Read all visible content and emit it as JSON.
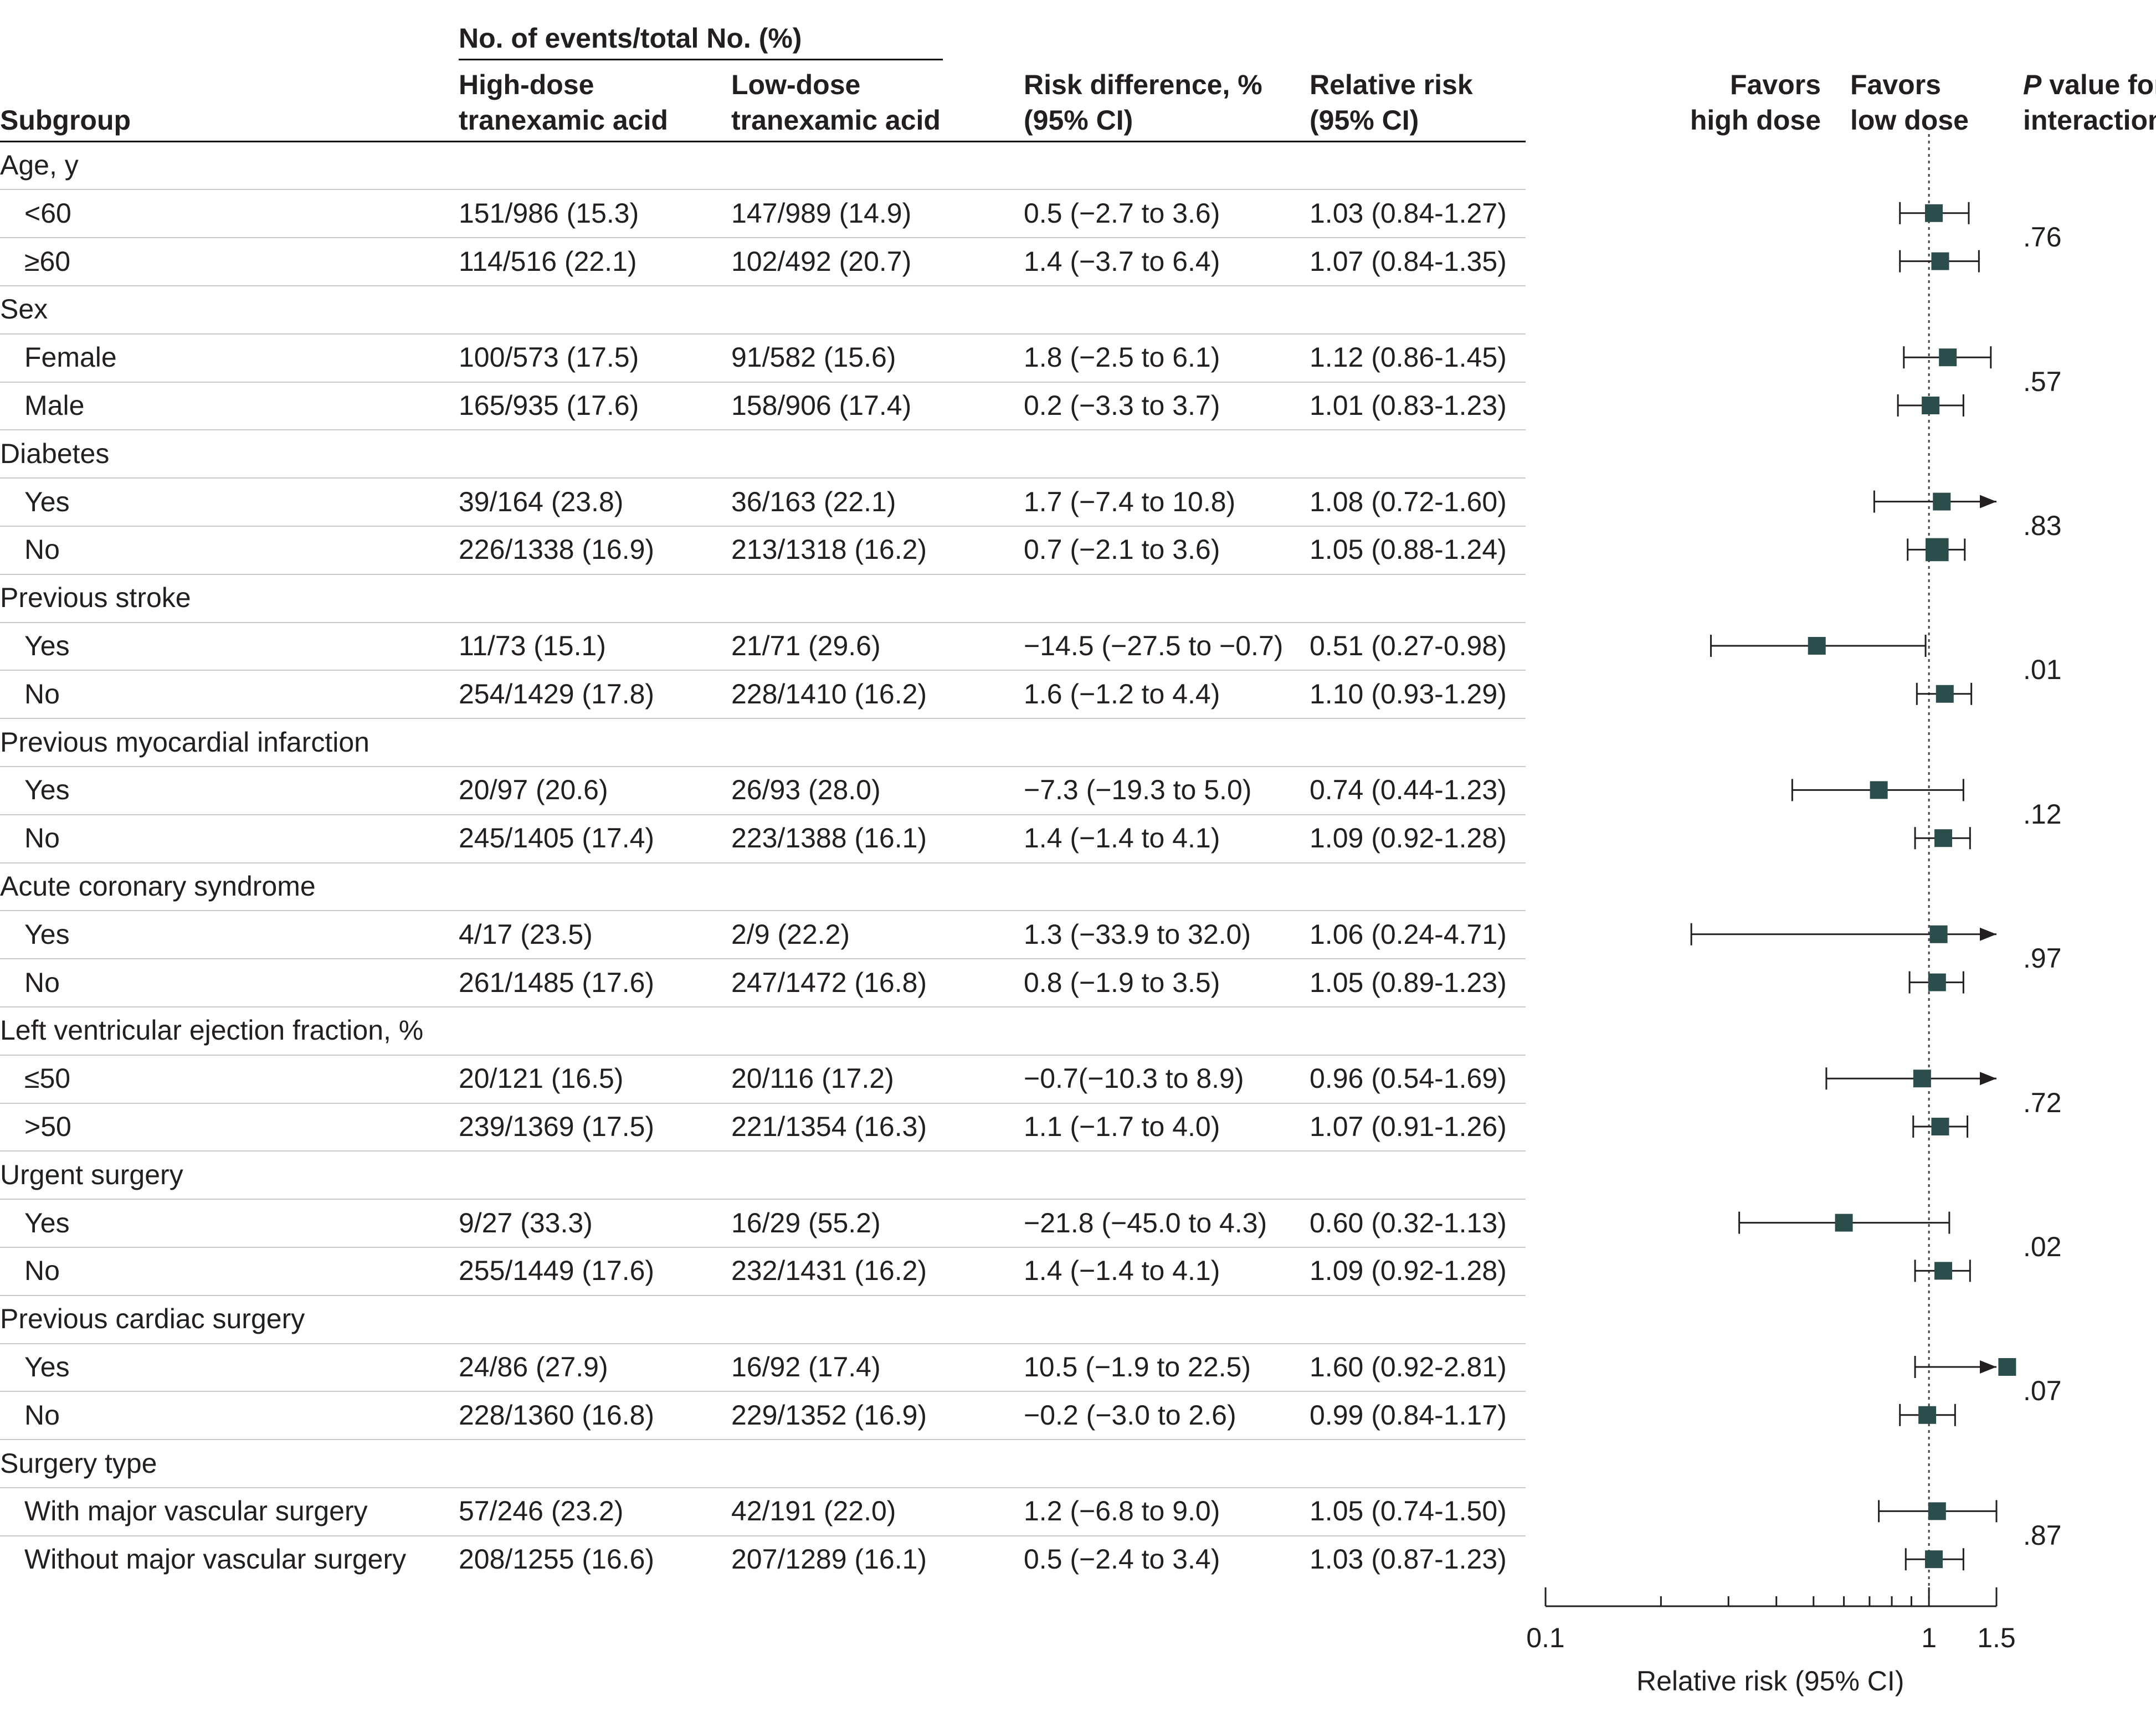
{
  "headers": {
    "events_group": "No. of events/total No. (%)",
    "subgroup": "Subgroup",
    "high_dose_1": "High-dose",
    "high_dose_2": "tranexamic acid",
    "low_dose_1": "Low-dose",
    "low_dose_2": "tranexamic acid",
    "risk_diff_1": "Risk difference, %",
    "risk_diff_2": "(95% CI)",
    "rel_risk_1": "Relative risk",
    "rel_risk_2": "(95% CI)",
    "favors_high_1": "Favors",
    "favors_high_2": "high dose",
    "favors_low_1": "Favors",
    "favors_low_2": "low dose",
    "pval_1": "value for",
    "pval_p": "P",
    "pval_2": "interaction"
  },
  "groups": [
    {
      "label": "Age, y",
      "p_value": ".76",
      "rows": [
        {
          "label": "<60",
          "high": "151/986 (15.3)",
          "low": "147/989 (14.9)",
          "rd": "0.5 (−2.7 to 3.6)",
          "rr": "1.03 (0.84-1.27)"
        },
        {
          "label": "≥60",
          "high": "114/516 (22.1)",
          "low": "102/492 (20.7)",
          "rd": "1.4 (−3.7 to 6.4)",
          "rr": "1.07 (0.84-1.35)"
        }
      ]
    },
    {
      "label": "Sex",
      "p_value": ".57",
      "rows": [
        {
          "label": "Female",
          "high": "100/573 (17.5)",
          "low": "91/582 (15.6)",
          "rd": "1.8 (−2.5 to 6.1)",
          "rr": "1.12 (0.86-1.45)"
        },
        {
          "label": "Male",
          "high": "165/935 (17.6)",
          "low": "158/906 (17.4)",
          "rd": "0.2 (−3.3 to 3.7)",
          "rr": "1.01 (0.83-1.23)"
        }
      ]
    },
    {
      "label": "Diabetes",
      "p_value": ".83",
      "rows": [
        {
          "label": "Yes",
          "high": "39/164 (23.8)",
          "low": "36/163 (22.1)",
          "rd": "1.7 (−7.4 to 10.8)",
          "rr": "1.08 (0.72-1.60)"
        },
        {
          "label": "No",
          "high": "226/1338 (16.9)",
          "low": "213/1318 (16.2)",
          "rd": "0.7 (−2.1 to 3.6)",
          "rr": "1.05 (0.88-1.24)"
        }
      ]
    },
    {
      "label": "Previous stroke",
      "p_value": ".01",
      "rows": [
        {
          "label": "Yes",
          "high": "11/73 (15.1)",
          "low": "21/71 (29.6)",
          "rd": "−14.5 (−27.5 to −0.7)",
          "rr": "0.51 (0.27-0.98)"
        },
        {
          "label": "No",
          "high": "254/1429 (17.8)",
          "low": "228/1410 (16.2)",
          "rd": "1.6 (−1.2 to 4.4)",
          "rr": "1.10 (0.93-1.29)"
        }
      ]
    },
    {
      "label": "Previous myocardial infarction",
      "p_value": ".12",
      "rows": [
        {
          "label": "Yes",
          "high": "20/97 (20.6)",
          "low": "26/93 (28.0)",
          "rd": "−7.3 (−19.3 to 5.0)",
          "rr": "0.74 (0.44-1.23)"
        },
        {
          "label": "No",
          "high": "245/1405 (17.4)",
          "low": "223/1388 (16.1)",
          "rd": "1.4 (−1.4 to 4.1)",
          "rr": "1.09 (0.92-1.28)"
        }
      ]
    },
    {
      "label": "Acute coronary syndrome",
      "p_value": ".97",
      "rows": [
        {
          "label": "Yes",
          "high": "4/17 (23.5)",
          "low": "2/9 (22.2)",
          "rd": "1.3 (−33.9 to 32.0)",
          "rr": "1.06 (0.24-4.71)"
        },
        {
          "label": "No",
          "high": "261/1485 (17.6)",
          "low": "247/1472 (16.8)",
          "rd": "0.8 (−1.9 to 3.5)",
          "rr": "1.05 (0.89-1.23)"
        }
      ]
    },
    {
      "label": "Left ventricular ejection fraction, %",
      "p_value": ".72",
      "rows": [
        {
          "label": "≤50",
          "high": "20/121 (16.5)",
          "low": "20/116 (17.2)",
          "rd": "−0.7(−10.3 to 8.9)",
          "rr": "0.96 (0.54-1.69)"
        },
        {
          "label": ">50",
          "high": "239/1369 (17.5)",
          "low": "221/1354 (16.3)",
          "rd": "1.1 (−1.7 to 4.0)",
          "rr": "1.07 (0.91-1.26)"
        }
      ]
    },
    {
      "label": "Urgent surgery",
      "p_value": ".02",
      "rows": [
        {
          "label": "Yes",
          "high": "9/27 (33.3)",
          "low": "16/29 (55.2)",
          "rd": "−21.8 (−45.0 to 4.3)",
          "rr": "0.60 (0.32-1.13)"
        },
        {
          "label": "No",
          "high": "255/1449 (17.6)",
          "low": "232/1431 (16.2)",
          "rd": "1.4 (−1.4 to 4.1)",
          "rr": "1.09 (0.92-1.28)"
        }
      ]
    },
    {
      "label": "Previous cardiac surgery",
      "p_value": ".07",
      "rows": [
        {
          "label": "Yes",
          "high": "24/86 (27.9)",
          "low": "16/92 (17.4)",
          "rd": "10.5 (−1.9 to 22.5)",
          "rr": "1.60 (0.92-2.81)"
        },
        {
          "label": "No",
          "high": "228/1360 (16.8)",
          "low": "229/1352 (16.9)",
          "rd": "−0.2 (−3.0 to 2.6)",
          "rr": "0.99 (0.84-1.17)"
        }
      ]
    },
    {
      "label": "Surgery type",
      "p_value": ".87",
      "rows": [
        {
          "label": "With major vascular surgery",
          "high": "57/246 (23.2)",
          "low": "42/191 (22.0)",
          "rd": "1.2 (−6.8 to 9.0)",
          "rr": "1.05 (0.74-1.50)"
        },
        {
          "label": "Without major vascular surgery",
          "high": "208/1255 (16.6)",
          "low": "207/1289 (16.1)",
          "rd": "0.5 (−2.4 to 3.4)",
          "rr": "1.03 (0.87-1.23)"
        }
      ]
    }
  ],
  "colors": {
    "marker": "#2b4d4c",
    "text": "#231f20",
    "rule": "#c9c9c9"
  },
  "chart_data": {
    "type": "forest",
    "xlabel": "Relative risk (95% CI)",
    "x_scale": "log",
    "xlim": [
      0.1,
      1.5
    ],
    "xticks": [
      0.1,
      1,
      1.5
    ],
    "xtick_labels": [
      "0.1",
      "1",
      "1.5"
    ],
    "reference_line": 1,
    "categories": [
      "<60",
      "≥60",
      "Female",
      "Male",
      "Diabetes: Yes",
      "Diabetes: No",
      "Previous stroke: Yes",
      "Previous stroke: No",
      "Previous MI: Yes",
      "Previous MI: No",
      "ACS: Yes",
      "ACS: No",
      "LVEF ≤50",
      "LVEF >50",
      "Urgent surgery: Yes",
      "Urgent surgery: No",
      "Previous cardiac surgery: Yes",
      "Previous cardiac surgery: No",
      "With major vascular surgery",
      "Without major vascular surgery"
    ],
    "rr": [
      1.03,
      1.07,
      1.12,
      1.01,
      1.08,
      1.05,
      0.51,
      1.1,
      0.74,
      1.09,
      1.06,
      1.05,
      0.96,
      1.07,
      0.6,
      1.09,
      1.6,
      0.99,
      1.05,
      1.03
    ],
    "lower": [
      0.84,
      0.84,
      0.86,
      0.83,
      0.72,
      0.88,
      0.27,
      0.93,
      0.44,
      0.92,
      0.24,
      0.89,
      0.54,
      0.91,
      0.32,
      0.92,
      0.92,
      0.84,
      0.74,
      0.87
    ],
    "upper": [
      1.27,
      1.35,
      1.45,
      1.23,
      1.6,
      1.24,
      0.98,
      1.29,
      1.23,
      1.28,
      4.71,
      1.23,
      1.69,
      1.26,
      1.13,
      1.28,
      2.81,
      1.17,
      1.5,
      1.23
    ],
    "marker_weight": [
      1,
      1,
      1,
      1,
      1,
      1.3,
      1,
      1,
      1,
      1,
      1,
      1,
      1,
      1,
      1,
      1,
      1,
      1,
      1,
      1
    ]
  }
}
